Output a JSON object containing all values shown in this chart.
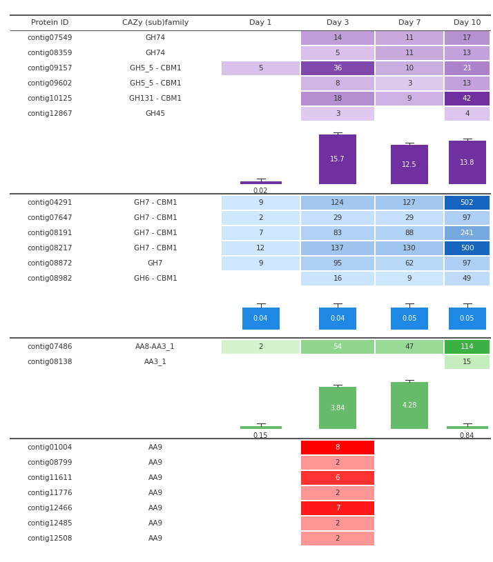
{
  "header": [
    "Protein ID",
    "CAZy (sub)family",
    "Day 1",
    "Day 3",
    "Day 7",
    "Day 10"
  ],
  "section1": {
    "rows": [
      {
        "protein": "contig07549",
        "family": "GH74",
        "d1": null,
        "d3": 14,
        "d7": 11,
        "d10": 17
      },
      {
        "protein": "contig08359",
        "family": "GH74",
        "d1": null,
        "d3": 5,
        "d7": 11,
        "d10": 13
      },
      {
        "protein": "contig09157",
        "family": "GH5_5 - CBM1",
        "d1": 5,
        "d3": 36,
        "d7": 10,
        "d10": 21
      },
      {
        "protein": "contig09602",
        "family": "GH5_5 - CBM1",
        "d1": null,
        "d3": 8,
        "d7": 3,
        "d10": 13
      },
      {
        "protein": "contig10125",
        "family": "GH131 - CBM1",
        "d1": null,
        "d3": 18,
        "d7": 9,
        "d10": 42
      },
      {
        "protein": "contig12867",
        "family": "GH45",
        "d1": null,
        "d3": 3,
        "d7": null,
        "d10": 4
      }
    ],
    "bar_values": [
      0.02,
      15.7,
      12.5,
      13.8
    ],
    "bar_errors": [
      0.003,
      0.5,
      0.4,
      0.4
    ],
    "bar_color": "#7030A0",
    "max_val": 42,
    "color_light": [
      0.91,
      0.835,
      0.96
    ],
    "color_dark": [
      0.439,
      0.188,
      0.627
    ]
  },
  "section2": {
    "rows": [
      {
        "protein": "contig04291",
        "family": "GH7 - CBM1",
        "d1": 9,
        "d3": 124,
        "d7": 127,
        "d10": 502
      },
      {
        "protein": "contig07647",
        "family": "GH7 - CBM1",
        "d1": 2,
        "d3": 29,
        "d7": 29,
        "d10": 97
      },
      {
        "protein": "contig08191",
        "family": "GH7 - CBM1",
        "d1": 7,
        "d3": 83,
        "d7": 88,
        "d10": 241
      },
      {
        "protein": "contig08217",
        "family": "GH7 - CBM1",
        "d1": 12,
        "d3": 137,
        "d7": 130,
        "d10": 500
      },
      {
        "protein": "contig08872",
        "family": "GH7",
        "d1": 9,
        "d3": 95,
        "d7": 62,
        "d10": 97
      },
      {
        "protein": "contig08982",
        "family": "GH6 - CBM1",
        "d1": null,
        "d3": 16,
        "d7": 9,
        "d10": 49
      }
    ],
    "bar_values": [
      0.04,
      0.04,
      0.05,
      0.05
    ],
    "bar_errors": [
      0.003,
      0.003,
      0.005,
      0.003
    ],
    "bar_color": "#1E88E5",
    "max_val": 502,
    "color_light": [
      0.82,
      0.91,
      1.0
    ],
    "color_dark": [
      0.082,
      0.396,
      0.753
    ]
  },
  "section3": {
    "rows": [
      {
        "protein": "contig07486",
        "family": "AA8-AA3_1",
        "d1": 2,
        "d3": 54,
        "d7": 47,
        "d10": 114
      },
      {
        "protein": "contig08138",
        "family": "AA3_1",
        "d1": null,
        "d3": null,
        "d7": null,
        "d10": 15
      }
    ],
    "bar_values": [
      0.15,
      3.84,
      4.28,
      0.84
    ],
    "bar_errors": [
      0.01,
      0.09,
      0.12,
      0.05
    ],
    "bar_color": "#66BB6A",
    "max_val": 114,
    "color_light": [
      0.847,
      0.961,
      0.812
    ],
    "color_dark": [
      0.239,
      0.698,
      0.267
    ]
  },
  "section4": {
    "rows": [
      {
        "protein": "contig01004",
        "family": "AA9",
        "d1": null,
        "d3": 8,
        "d7": null,
        "d10": null
      },
      {
        "protein": "contig08799",
        "family": "AA9",
        "d1": null,
        "d3": 2,
        "d7": null,
        "d10": null
      },
      {
        "protein": "contig11611",
        "family": "AA9",
        "d1": null,
        "d3": 6,
        "d7": null,
        "d10": null
      },
      {
        "protein": "contig11776",
        "family": "AA9",
        "d1": null,
        "d3": 2,
        "d7": null,
        "d10": null
      },
      {
        "protein": "contig12466",
        "family": "AA9",
        "d1": null,
        "d3": 7,
        "d7": null,
        "d10": null
      },
      {
        "protein": "contig12485",
        "family": "AA9",
        "d1": null,
        "d3": 2,
        "d7": null,
        "d10": null
      },
      {
        "protein": "contig12508",
        "family": "AA9",
        "d1": null,
        "d3": 2,
        "d7": null,
        "d10": null
      }
    ],
    "bar_color": "#e53935",
    "max_val": 8,
    "color_light": [
      1.0,
      0.78,
      0.78
    ],
    "color_dark": [
      1.0,
      0.0,
      0.0
    ]
  }
}
